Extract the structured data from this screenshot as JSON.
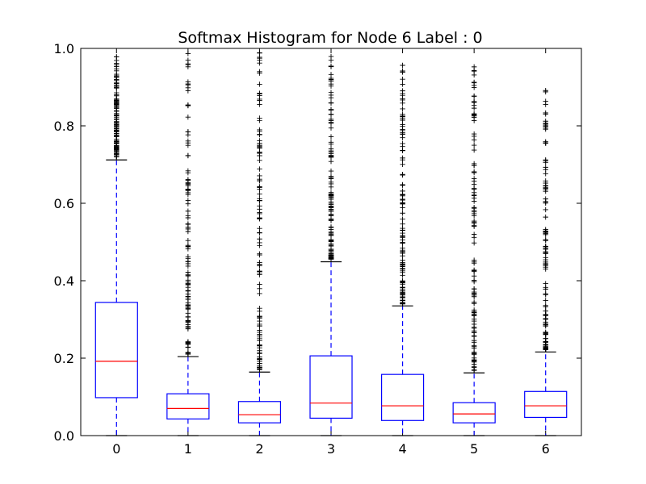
{
  "chart_data": {
    "type": "box",
    "title": "Softmax Histogram for Node 6 Label : 0",
    "xlabel": "",
    "ylabel": "",
    "ylim": [
      0.0,
      1.0
    ],
    "yticks": [
      0.0,
      0.2,
      0.4,
      0.6,
      0.8,
      1.0
    ],
    "categories": [
      "0",
      "1",
      "2",
      "3",
      "4",
      "5",
      "6"
    ],
    "boxes": [
      {
        "q1": 0.098,
        "median": 0.192,
        "q3": 0.344,
        "whisker_low": 0.0,
        "whisker_high": 0.712,
        "outliers_from": 0.72,
        "outliers_to": 0.98
      },
      {
        "q1": 0.043,
        "median": 0.07,
        "q3": 0.108,
        "whisker_low": 0.0,
        "whisker_high": 0.204,
        "outliers_from": 0.21,
        "outliers_to": 0.99
      },
      {
        "q1": 0.033,
        "median": 0.054,
        "q3": 0.088,
        "whisker_low": 0.0,
        "whisker_high": 0.164,
        "outliers_from": 0.17,
        "outliers_to": 1.0
      },
      {
        "q1": 0.045,
        "median": 0.084,
        "q3": 0.206,
        "whisker_low": 0.0,
        "whisker_high": 0.449,
        "outliers_from": 0.455,
        "outliers_to": 0.985
      },
      {
        "q1": 0.039,
        "median": 0.077,
        "q3": 0.158,
        "whisker_low": 0.0,
        "whisker_high": 0.335,
        "outliers_from": 0.34,
        "outliers_to": 0.98
      },
      {
        "q1": 0.033,
        "median": 0.056,
        "q3": 0.085,
        "whisker_low": 0.0,
        "whisker_high": 0.162,
        "outliers_from": 0.168,
        "outliers_to": 0.955
      },
      {
        "q1": 0.047,
        "median": 0.077,
        "q3": 0.114,
        "whisker_low": 0.0,
        "whisker_high": 0.216,
        "outliers_from": 0.222,
        "outliers_to": 0.925
      }
    ],
    "colors": {
      "box": "#0000ff",
      "median": "#ff0000",
      "whisker": "#0000ff",
      "cap": "#000000",
      "outlier": "#000000",
      "axes": "#000000"
    },
    "grid": false,
    "legend": "none"
  }
}
